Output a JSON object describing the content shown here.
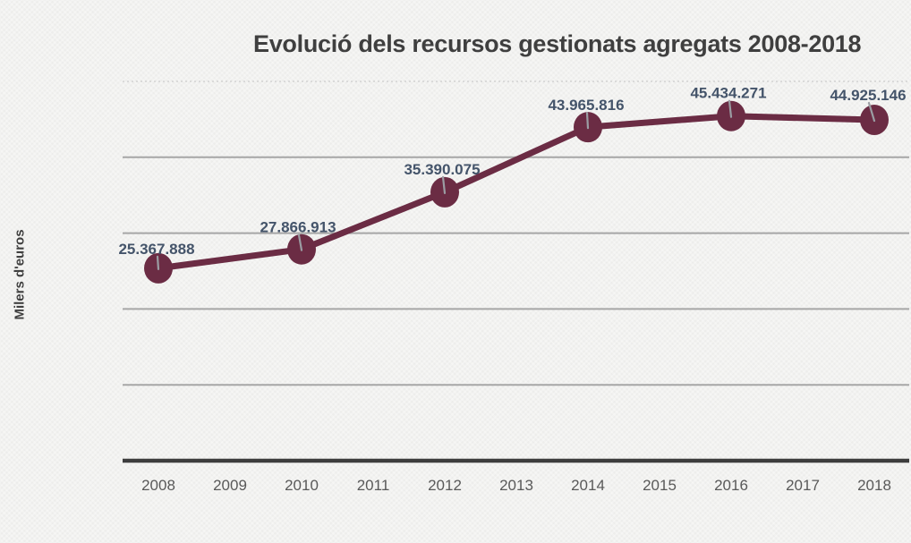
{
  "chart_data": {
    "type": "line",
    "title": "Evolució dels recursos gestionats agregats 2008-2018",
    "xlabel": "",
    "ylabel": "Milers d'euros",
    "categories": [
      "2008",
      "2009",
      "2010",
      "2011",
      "2012",
      "2013",
      "2014",
      "2015",
      "2016",
      "2017",
      "2018"
    ],
    "points": [
      {
        "x": "2008",
        "value": 25367888,
        "label": "25.367.888"
      },
      {
        "x": "2010",
        "value": 27866913,
        "label": "27.866.913"
      },
      {
        "x": "2012",
        "value": 35390075,
        "label": "35.390.075"
      },
      {
        "x": "2014",
        "value": 43965816,
        "label": "43.965.816"
      },
      {
        "x": "2016",
        "value": 45434271,
        "label": "45.434.271"
      },
      {
        "x": "2018",
        "value": 44925146,
        "label": "44.925.146"
      }
    ],
    "ylim": [
      0,
      50000000
    ],
    "gridline_interval": 10000000,
    "grid": true,
    "legend": "none",
    "y_tick_labels_visible": false
  },
  "colors": {
    "background": "#F2F2F0",
    "line": "#6B2C44",
    "marker": "#6B2C44",
    "data_label": "#44546A",
    "title": "#3F3F3F",
    "axis_tick_label": "#595959",
    "gridline": "#A6A6A6",
    "gridline_top": "#D2D2D2",
    "axis_line": "#3D3D3D",
    "leader_line": "#9B9DA3"
  }
}
